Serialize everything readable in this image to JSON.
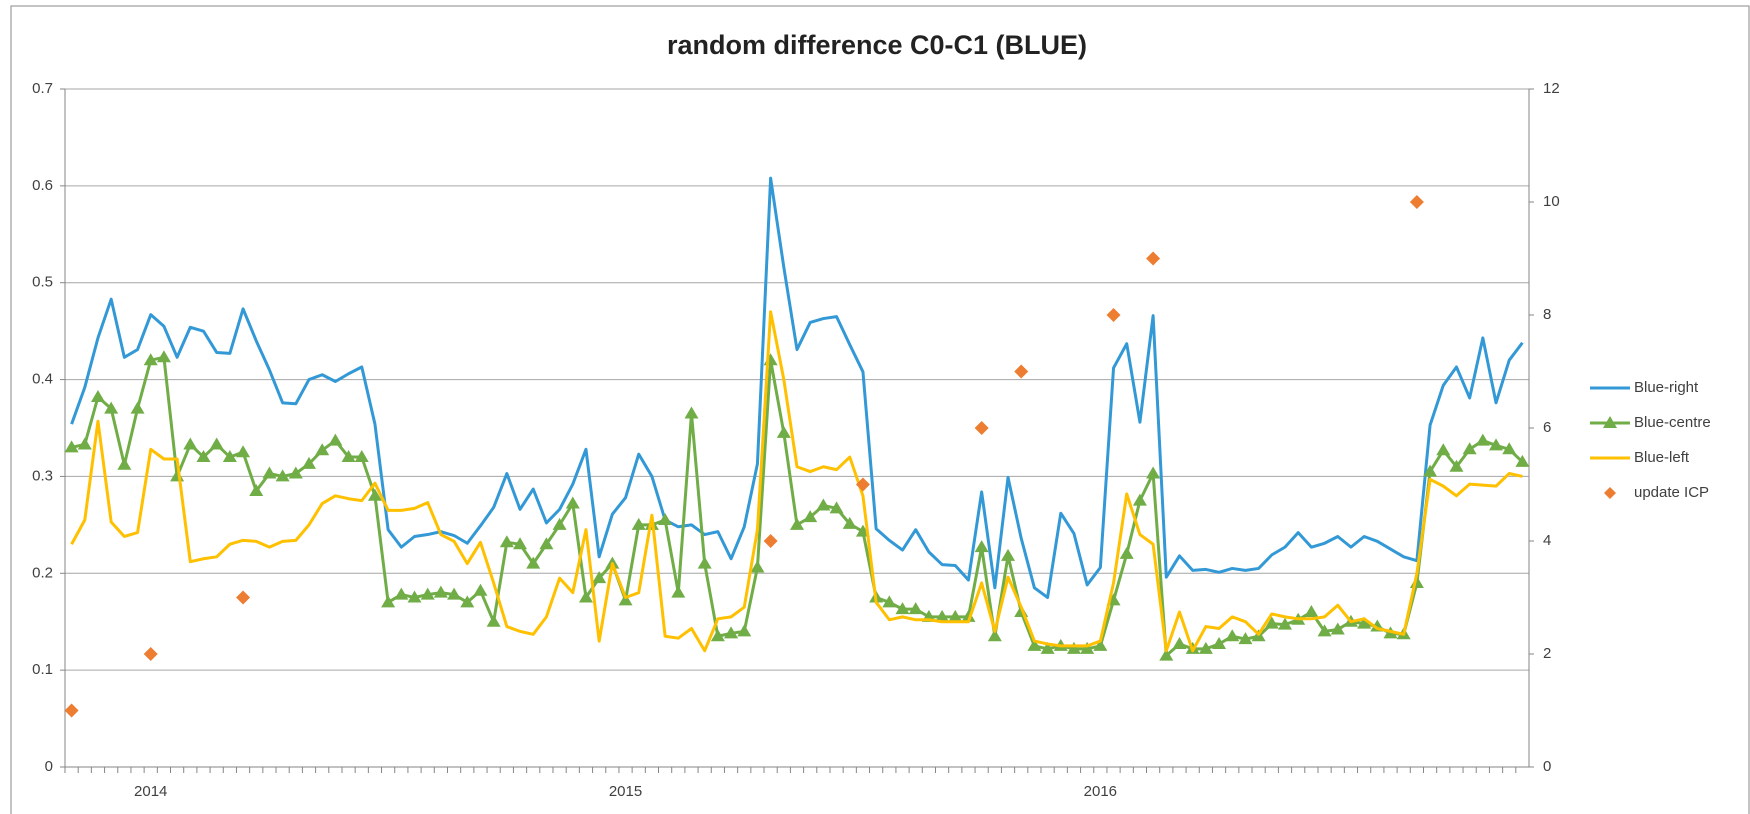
{
  "chart_data": {
    "type": "line",
    "title": "random difference C0-C1 (BLUE)",
    "categories": [
      null,
      null,
      null,
      null,
      null,
      null,
      "2014",
      null,
      null,
      null,
      null,
      null,
      null,
      null,
      null,
      null,
      null,
      null,
      null,
      null,
      null,
      null,
      null,
      null,
      null,
      null,
      null,
      null,
      null,
      null,
      null,
      null,
      null,
      null,
      null,
      null,
      null,
      null,
      null,
      null,
      null,
      null,
      "2015",
      null,
      null,
      null,
      null,
      null,
      null,
      null,
      null,
      null,
      null,
      null,
      null,
      null,
      null,
      null,
      null,
      null,
      null,
      null,
      null,
      null,
      null,
      null,
      null,
      null,
      null,
      null,
      null,
      null,
      null,
      null,
      null,
      null,
      null,
      null,
      "2016",
      null,
      null,
      null,
      null,
      null,
      null,
      null,
      null,
      null,
      null,
      null,
      null,
      null,
      null,
      null,
      null,
      null,
      null,
      null,
      null,
      null,
      null,
      null,
      null,
      null,
      null,
      null,
      null,
      null,
      null,
      null,
      null
    ],
    "ylim": [
      0,
      0.7
    ],
    "yticks": [
      0,
      0.1,
      0.2,
      0.3,
      0.4,
      0.5,
      0.6,
      0.7
    ],
    "y2lim": [
      0,
      12
    ],
    "y2ticks": [
      0,
      2,
      4,
      6,
      8,
      10,
      12
    ],
    "grid": true,
    "legend": "right",
    "series": [
      {
        "name": "Blue-right",
        "color": "#3399d6",
        "marker": "none",
        "values": [
          0.354,
          0.392,
          0.443,
          0.483,
          0.423,
          0.431,
          0.467,
          0.455,
          0.423,
          0.454,
          0.45,
          0.428,
          0.427,
          0.473,
          0.44,
          0.41,
          0.376,
          0.375,
          0.4,
          0.405,
          0.398,
          0.406,
          0.413,
          0.354,
          0.245,
          0.227,
          0.238,
          0.24,
          0.243,
          0.239,
          0.231,
          0.249,
          0.268,
          0.303,
          0.266,
          0.287,
          0.252,
          0.266,
          0.292,
          0.328,
          0.217,
          0.261,
          0.278,
          0.323,
          0.3,
          0.255,
          0.248,
          0.25,
          0.24,
          0.243,
          0.215,
          0.248,
          0.313,
          0.608,
          0.516,
          0.431,
          0.459,
          0.463,
          0.465,
          0.436,
          0.408,
          0.246,
          0.234,
          0.224,
          0.245,
          0.222,
          0.209,
          0.208,
          0.193,
          0.284,
          0.185,
          0.299,
          0.236,
          0.185,
          0.175,
          0.262,
          0.241,
          0.188,
          0.206,
          0.412,
          0.437,
          0.356,
          0.466,
          0.196,
          0.218,
          0.203,
          0.204,
          0.201,
          0.205,
          0.203,
          0.205,
          0.219,
          0.227,
          0.242,
          0.227,
          0.231,
          0.238,
          0.227,
          0.238,
          0.233,
          0.225,
          0.217,
          0.213,
          0.353,
          0.394,
          0.413,
          0.381,
          0.443,
          0.376,
          0.42,
          0.438
        ]
      },
      {
        "name": "Blue-centre",
        "color": "#70ad47",
        "marker": "triangle",
        "values": [
          0.33,
          0.333,
          0.382,
          0.37,
          0.312,
          0.37,
          0.42,
          0.423,
          0.3,
          0.333,
          0.32,
          0.333,
          0.32,
          0.325,
          0.285,
          0.303,
          0.3,
          0.303,
          0.313,
          0.327,
          0.337,
          0.32,
          0.32,
          0.28,
          0.17,
          0.178,
          0.175,
          0.178,
          0.18,
          0.178,
          0.17,
          0.182,
          0.15,
          0.232,
          0.23,
          0.21,
          0.23,
          0.25,
          0.272,
          0.175,
          0.195,
          0.21,
          0.172,
          0.25,
          0.25,
          0.255,
          0.18,
          0.365,
          0.21,
          0.135,
          0.138,
          0.14,
          0.206,
          0.42,
          0.345,
          0.25,
          0.258,
          0.27,
          0.267,
          0.251,
          0.243,
          0.175,
          0.17,
          0.163,
          0.163,
          0.155,
          0.155,
          0.155,
          0.155,
          0.227,
          0.135,
          0.218,
          0.16,
          0.125,
          0.122,
          0.125,
          0.122,
          0.122,
          0.125,
          0.172,
          0.22,
          0.275,
          0.303,
          0.115,
          0.127,
          0.122,
          0.122,
          0.127,
          0.135,
          0.132,
          0.135,
          0.148,
          0.147,
          0.152,
          0.16,
          0.14,
          0.142,
          0.15,
          0.148,
          0.145,
          0.138,
          0.137,
          0.19,
          0.305,
          0.327,
          0.31,
          0.328,
          0.337,
          0.332,
          0.328,
          0.315
        ]
      },
      {
        "name": "Blue-left",
        "color": "#ffc000",
        "marker": "none",
        "values": [
          0.23,
          0.255,
          0.357,
          0.253,
          0.238,
          0.242,
          0.328,
          0.318,
          0.318,
          0.212,
          0.215,
          0.217,
          0.23,
          0.234,
          0.233,
          0.227,
          0.233,
          0.234,
          0.25,
          0.272,
          0.28,
          0.277,
          0.275,
          0.293,
          0.265,
          0.265,
          0.267,
          0.273,
          0.24,
          0.233,
          0.21,
          0.232,
          0.19,
          0.145,
          0.14,
          0.137,
          0.155,
          0.195,
          0.18,
          0.245,
          0.13,
          0.21,
          0.175,
          0.18,
          0.26,
          0.135,
          0.133,
          0.143,
          0.12,
          0.153,
          0.155,
          0.165,
          0.245,
          0.47,
          0.4,
          0.31,
          0.305,
          0.31,
          0.307,
          0.32,
          0.28,
          0.17,
          0.152,
          0.155,
          0.152,
          0.152,
          0.15,
          0.15,
          0.15,
          0.19,
          0.14,
          0.196,
          0.165,
          0.13,
          0.127,
          0.125,
          0.125,
          0.125,
          0.13,
          0.19,
          0.282,
          0.24,
          0.23,
          0.12,
          0.16,
          0.12,
          0.145,
          0.143,
          0.155,
          0.15,
          0.137,
          0.158,
          0.155,
          0.153,
          0.153,
          0.155,
          0.167,
          0.15,
          0.153,
          0.143,
          0.14,
          0.137,
          0.2,
          0.297,
          0.29,
          0.28,
          0.292,
          0.291,
          0.29,
          0.303,
          0.3
        ]
      },
      {
        "name": "update ICP",
        "color": "#ed7d31",
        "type": "scatter",
        "marker": "diamond",
        "axis": "y2",
        "values": [
          1,
          null,
          null,
          null,
          null,
          null,
          2,
          null,
          null,
          null,
          null,
          null,
          null,
          3,
          null,
          null,
          null,
          null,
          null,
          null,
          null,
          null,
          null,
          null,
          null,
          null,
          null,
          null,
          null,
          null,
          null,
          null,
          null,
          null,
          null,
          null,
          null,
          null,
          null,
          null,
          null,
          null,
          null,
          null,
          null,
          null,
          null,
          null,
          null,
          null,
          null,
          null,
          null,
          4,
          null,
          null,
          null,
          null,
          null,
          null,
          5,
          null,
          null,
          null,
          null,
          null,
          null,
          null,
          null,
          6,
          null,
          null,
          7,
          null,
          null,
          null,
          null,
          null,
          null,
          8,
          null,
          null,
          9,
          null,
          null,
          null,
          null,
          null,
          null,
          null,
          null,
          null,
          null,
          null,
          null,
          null,
          null,
          null,
          null,
          null,
          null,
          null,
          10,
          null,
          null,
          null,
          null,
          null,
          null,
          null,
          null
        ]
      }
    ]
  }
}
